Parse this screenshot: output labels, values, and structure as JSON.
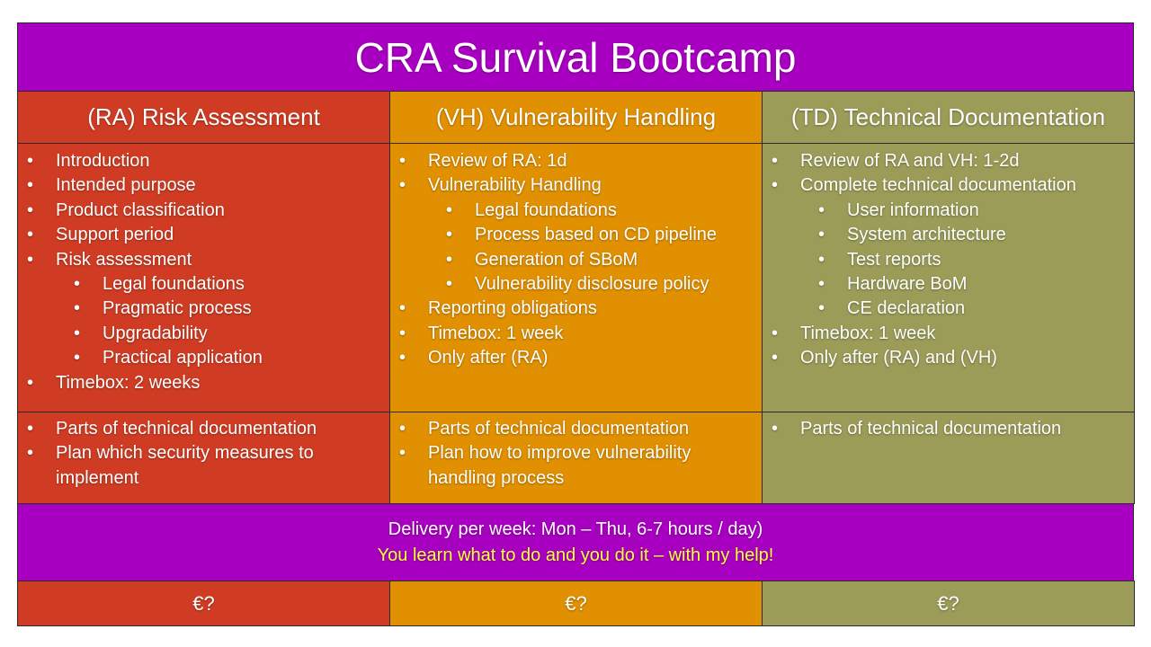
{
  "title": "CRA Survival Bootcamp",
  "columns": [
    {
      "header": "(RA) Risk Assessment",
      "color": "#d03c23",
      "items": [
        {
          "text": "Introduction"
        },
        {
          "text": "Intended purpose"
        },
        {
          "text": "Product classification"
        },
        {
          "text": "Support period"
        },
        {
          "text": "Risk assessment",
          "children": [
            "Legal foundations",
            "Pragmatic process",
            "Upgradability",
            "Practical application"
          ]
        },
        {
          "text": "Timebox: 2 weeks"
        }
      ],
      "outcomes": [
        "Parts of technical documentation",
        "Plan which security measures to implement"
      ],
      "price": "€?"
    },
    {
      "header": "(VH) Vulnerability Handling",
      "color": "#e09000",
      "items": [
        {
          "text": "Review of RA: 1d"
        },
        {
          "text": "Vulnerability Handling",
          "children": [
            "Legal foundations",
            "Process based on CD pipeline",
            "Generation of SBoM",
            "Vulnerability disclosure policy"
          ]
        },
        {
          "text": "Reporting obligations"
        },
        {
          "text": "Timebox: 1 week"
        },
        {
          "text": "Only after (RA)"
        }
      ],
      "outcomes": [
        "Parts of technical documentation",
        "Plan how to improve vulnerability handling process"
      ],
      "price": "€?"
    },
    {
      "header": "(TD) Technical Documentation",
      "color": "#9b9c58",
      "items": [
        {
          "text": "Review of RA and VH: 1-2d"
        },
        {
          "text": "Complete technical documentation",
          "children": [
            "User information",
            "System architecture",
            "Test reports",
            "Hardware BoM",
            "CE declaration"
          ]
        },
        {
          "text": "Timebox: 1 week"
        },
        {
          "text": "Only after (RA) and (VH)"
        }
      ],
      "outcomes": [
        "Parts of technical documentation"
      ],
      "price": "€?"
    }
  ],
  "delivery": {
    "line1": "Delivery per week: Mon – Thu, 6-7 hours / day)",
    "line2": "You learn what to do and you do it – with my help!"
  }
}
